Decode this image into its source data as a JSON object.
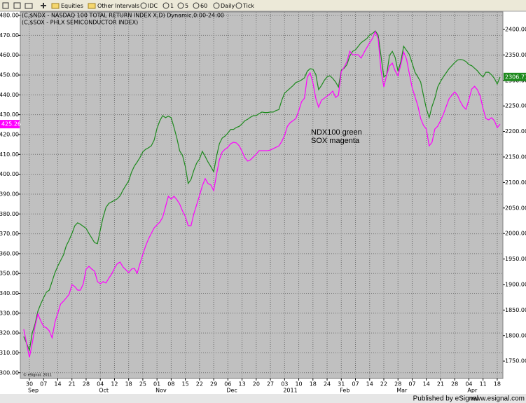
{
  "toolbar": [
    "Equities",
    "Other Intervals",
    "IDC",
    "1",
    "5",
    "60",
    "Daily",
    "Tick"
  ],
  "footer": {
    "published": "Published by eSignal",
    "site": "www.esignal.com"
  },
  "chart_data": {
    "type": "line",
    "annotations": [
      "NDX100 green",
      "SOX magenta"
    ],
    "copyright": "© eSignal, 2011",
    "grid": true,
    "categories": [
      null,
      null,
      "30",
      null,
      null,
      null,
      null,
      "07",
      null,
      null,
      null,
      null,
      "14",
      null,
      null,
      null,
      null,
      "21",
      null,
      null,
      null,
      null,
      "28",
      null,
      null,
      null,
      null,
      "04",
      null,
      null,
      null,
      null,
      "12",
      null,
      null,
      null,
      null,
      "18",
      null,
      null,
      null,
      null,
      "25",
      null,
      null,
      null,
      null,
      "01",
      null,
      null,
      null,
      null,
      "08",
      null,
      null,
      null,
      null,
      "15",
      null,
      null,
      null,
      null,
      "22",
      null,
      null,
      null,
      null,
      "29",
      null,
      null,
      null,
      null,
      "06",
      null,
      null,
      null,
      null,
      "13",
      null,
      null,
      null,
      null,
      "20",
      null,
      null,
      null,
      null,
      "27",
      null,
      null,
      null,
      null,
      "03",
      null,
      null,
      null,
      null,
      "10",
      null,
      null,
      null,
      null,
      "18",
      null,
      null,
      null,
      null,
      "24",
      null,
      null,
      null,
      null,
      "31",
      null,
      null,
      null,
      null,
      "07",
      null,
      null,
      null,
      null,
      "14",
      null,
      null,
      null,
      null,
      "22",
      null,
      null,
      null,
      null,
      "28",
      null,
      null,
      null,
      null,
      "07",
      null,
      null,
      null,
      null,
      "14",
      null,
      null,
      null,
      null,
      "21",
      null,
      null,
      null,
      null,
      "28",
      null,
      null,
      null,
      null,
      "04",
      null,
      null,
      null,
      null,
      "11",
      null,
      null,
      null,
      null,
      "18",
      null
    ],
    "category_groups": [
      null,
      null,
      "Sep",
      null,
      null,
      null,
      null,
      null,
      null,
      null,
      null,
      null,
      null,
      null,
      null,
      null,
      null,
      null,
      null,
      null,
      null,
      null,
      null,
      null,
      null,
      null,
      null,
      "Oct",
      null,
      null,
      null,
      null,
      null,
      null,
      null,
      null,
      null,
      null,
      null,
      null,
      null,
      null,
      null,
      null,
      null,
      null,
      null,
      "Nov",
      null,
      null,
      null,
      null,
      null,
      null,
      null,
      null,
      null,
      null,
      null,
      null,
      null,
      null,
      null,
      null,
      null,
      null,
      null,
      null,
      null,
      null,
      null,
      null,
      "Dec",
      null,
      null,
      null,
      null,
      null,
      null,
      null,
      null,
      null,
      null,
      null,
      null,
      null,
      null,
      null,
      null,
      null,
      null,
      null,
      "2011",
      null,
      null,
      null,
      null,
      null,
      null,
      null,
      null,
      null,
      null,
      null,
      null,
      null,
      null,
      null,
      null,
      null,
      null,
      null,
      "Feb",
      null,
      null,
      null,
      null,
      null,
      null,
      null,
      null,
      null,
      null,
      null,
      null,
      null,
      null,
      null,
      null,
      null,
      null,
      null,
      "Mar",
      null,
      null,
      null,
      null,
      null,
      null,
      null,
      null,
      null,
      null,
      null,
      null,
      null,
      null,
      null,
      null,
      null,
      null,
      null,
      null,
      null,
      null,
      null,
      null,
      "Apr",
      null,
      null,
      null,
      null,
      null,
      null,
      null,
      null,
      null,
      null,
      null,
      null,
      null,
      null,
      null,
      null
    ],
    "series": [
      {
        "name": "(C,$NDX - NASDAQ 100 TOTAL RETURN INDEX X,D) Dynamic,0:00-24:00",
        "color": "#1e8a1e",
        "axis": "y2",
        "values": [
          1798,
          1785,
          1771,
          1805,
          1823,
          1848,
          1862,
          1874,
          1885,
          1889,
          1906,
          1923,
          1936,
          1947,
          1958,
          1976,
          1987,
          2000,
          2015,
          2021,
          2018,
          2014,
          2010,
          2000,
          1991,
          1982,
          1980,
          2007,
          2032,
          2051,
          2059,
          2062,
          2065,
          2068,
          2074,
          2085,
          2094,
          2103,
          2120,
          2132,
          2140,
          2149,
          2160,
          2165,
          2168,
          2172,
          2183,
          2206,
          2221,
          2231,
          2227,
          2230,
          2227,
          2208,
          2187,
          2162,
          2153,
          2131,
          2098,
          2106,
          2124,
          2138,
          2146,
          2161,
          2151,
          2140,
          2131,
          2121,
          2151,
          2176,
          2187,
          2191,
          2197,
          2204,
          2204,
          2208,
          2210,
          2215,
          2221,
          2224,
          2228,
          2231,
          2231,
          2235,
          2238,
          2237,
          2237,
          2238,
          2238,
          2241,
          2243,
          2261,
          2275,
          2280,
          2285,
          2290,
          2296,
          2298,
          2301,
          2305,
          2318,
          2323,
          2322,
          2312,
          2282,
          2290,
          2300,
          2307,
          2309,
          2304,
          2297,
          2287,
          2320,
          2324,
          2331,
          2348,
          2357,
          2360,
          2367,
          2374,
          2378,
          2382,
          2389,
          2392,
          2397,
          2389,
          2348,
          2307,
          2311,
          2349,
          2357,
          2345,
          2318,
          2337,
          2367,
          2359,
          2351,
          2334,
          2316,
          2307,
          2297,
          2270,
          2245,
          2227,
          2249,
          2265,
          2287,
          2298,
          2307,
          2315,
          2323,
          2329,
          2335,
          2340,
          2341,
          2340,
          2337,
          2331,
          2329,
          2324,
          2319,
          2312,
          2307,
          2316,
          2316,
          2311,
          2304,
          2293,
          2306.77
        ]
      },
      {
        "name": "(C,$SOX - PHLX SEMICONDUCTOR INDEX)",
        "color": "#ff00ff",
        "axis": "y",
        "values": [
          321.9,
          314.8,
          307.7,
          314.8,
          323.6,
          329.6,
          326.1,
          323.3,
          322.6,
          321.1,
          317.6,
          325.4,
          330.0,
          334.6,
          336.0,
          337.7,
          339.5,
          344.4,
          343.4,
          341.6,
          341.6,
          344.8,
          352.2,
          353.6,
          352.2,
          351.2,
          345.9,
          344.8,
          345.9,
          345.2,
          347.6,
          349.7,
          352.6,
          355.0,
          355.7,
          353.3,
          351.9,
          350.4,
          352.2,
          352.6,
          350.1,
          355.0,
          359.6,
          363.9,
          367.4,
          370.2,
          373.0,
          374.5,
          375.9,
          378.3,
          383.6,
          388.9,
          387.5,
          388.9,
          387.2,
          385.0,
          381.5,
          378.7,
          374.1,
          374.1,
          380.1,
          384.7,
          389.3,
          394.2,
          397.8,
          395.3,
          394.6,
          391.7,
          399.9,
          407.3,
          411.2,
          412.6,
          413.6,
          415.4,
          416.1,
          415.8,
          414.3,
          411.5,
          408.3,
          406.6,
          407.3,
          408.7,
          410.1,
          411.9,
          411.9,
          411.9,
          411.9,
          412.2,
          412.9,
          413.6,
          414.3,
          416.5,
          419.6,
          424.2,
          426.0,
          427.0,
          428.1,
          432.0,
          436.6,
          438.3,
          448.9,
          451.1,
          446.1,
          438.3,
          433.8,
          437.3,
          438.3,
          439.4,
          440.5,
          441.9,
          438.7,
          439.8,
          451.8,
          453.9,
          456.7,
          462.0,
          460.2,
          460.2,
          460.2,
          458.5,
          461.3,
          463.8,
          466.2,
          468.4,
          471.9,
          468.4,
          452.5,
          444.0,
          450.0,
          454.6,
          456.0,
          452.1,
          449.6,
          455.3,
          461.6,
          458.1,
          450.7,
          443.6,
          439.1,
          434.5,
          428.1,
          424.6,
          422.8,
          414.3,
          416.1,
          422.8,
          424.2,
          427.0,
          430.2,
          434.1,
          438.0,
          439.8,
          441.5,
          439.8,
          436.6,
          434.1,
          432.7,
          437.6,
          442.9,
          444.3,
          442.6,
          439.4,
          433.1,
          428.1,
          427.4,
          428.5,
          427.0,
          423.5,
          425.26
        ]
      }
    ],
    "ylim": [
      297.1,
      481.8
    ],
    "yticks": [
      {
        "value": 300,
        "label": "300.00"
      },
      {
        "value": 310,
        "label": "310.00"
      },
      {
        "value": 320,
        "label": "320.00"
      },
      {
        "value": 330,
        "label": "330.00"
      },
      {
        "value": 340,
        "label": "340.00"
      },
      {
        "value": 350,
        "label": "350.00"
      },
      {
        "value": 360,
        "label": "360.00"
      },
      {
        "value": 370,
        "label": "370.00"
      },
      {
        "value": 380,
        "label": "380.00"
      },
      {
        "value": 390,
        "label": "390.00"
      },
      {
        "value": 400,
        "label": "400.00"
      },
      {
        "value": 410,
        "label": "410.00"
      },
      {
        "value": 420,
        "label": "420.00"
      },
      {
        "value": 430,
        "label": "430.00"
      },
      {
        "value": 440,
        "label": "440.00"
      },
      {
        "value": 450,
        "label": "450.00"
      },
      {
        "value": 460,
        "label": "460.00"
      },
      {
        "value": 470,
        "label": "470.00"
      },
      {
        "value": 480,
        "label": "480.00"
      }
    ],
    "y2lim": [
      1715.9,
      2434.3
    ],
    "y2ticks": [
      {
        "value": 1750,
        "label": "1750.00"
      },
      {
        "value": 1800,
        "label": "1800.00"
      },
      {
        "value": 1850,
        "label": "1850.00"
      },
      {
        "value": 1900,
        "label": "1900.00"
      },
      {
        "value": 1950,
        "label": "1950.00"
      },
      {
        "value": 2000,
        "label": "2000.00"
      },
      {
        "value": 2050,
        "label": "2050.00"
      },
      {
        "value": 2100,
        "label": "2100.00"
      },
      {
        "value": 2150,
        "label": "2150.00"
      },
      {
        "value": 2200,
        "label": "2200.00"
      },
      {
        "value": 2250,
        "label": "2250.00"
      },
      {
        "value": 2300,
        "label": "2300.00"
      },
      {
        "value": 2350,
        "label": "2350.00"
      },
      {
        "value": 2400,
        "label": "2400.00"
      }
    ]
  }
}
